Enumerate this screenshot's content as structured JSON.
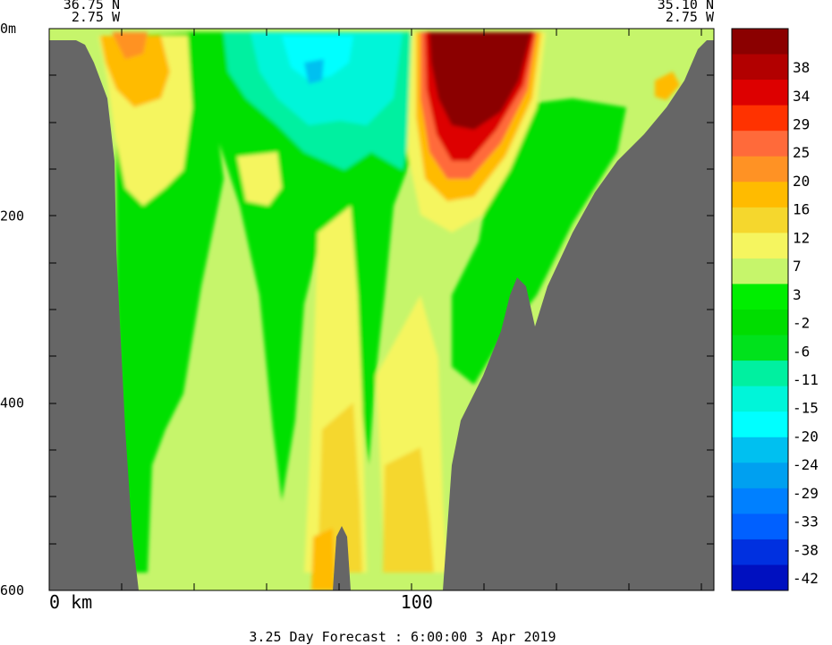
{
  "chart_data": {
    "type": "heatmap",
    "title": "",
    "corners": {
      "left": {
        "lat": "36.75 N",
        "lon": "2.75 W"
      },
      "right": {
        "lat": "35.10 N",
        "lon": "2.75 W"
      }
    },
    "y_axis": {
      "labels": [
        {
          "value": 0,
          "text": "0m"
        },
        {
          "value": 200,
          "text": "200"
        },
        {
          "value": 400,
          "text": "400"
        },
        {
          "value": 600,
          "text": "600"
        }
      ],
      "range": [
        0,
        600
      ],
      "direction": "down"
    },
    "x_axis": {
      "labels": [
        {
          "value": 0,
          "text": "0 km"
        },
        {
          "value": 100,
          "text": "100"
        }
      ],
      "range": [
        0,
        180
      ]
    },
    "colorbar": {
      "colors": [
        "#8b0000",
        "#b20000",
        "#dd0000",
        "#ff3200",
        "#ff6a3a",
        "#ff9224",
        "#ffbb00",
        "#f5d72d",
        "#f5f55f",
        "#c6f56b",
        "#00ee00",
        "#00dd00",
        "#00e21c",
        "#00f0a0",
        "#00f5d9",
        "#00ffff",
        "#00c0f0",
        "#00a0f0",
        "#0080ff",
        "#0060ff",
        "#0030e0",
        "#0010c0"
      ],
      "labels": [
        "38",
        "34",
        "29",
        "25",
        "20",
        "16",
        "12",
        "7",
        "3",
        "-2",
        "-6",
        "-11",
        "-15",
        "-20",
        "-24",
        "-29",
        "-33",
        "-38",
        "-42"
      ]
    },
    "bathymetry_color": "#666666",
    "footer": "3.25 Day Forecast :  6:00:00   3 Apr 2019"
  }
}
